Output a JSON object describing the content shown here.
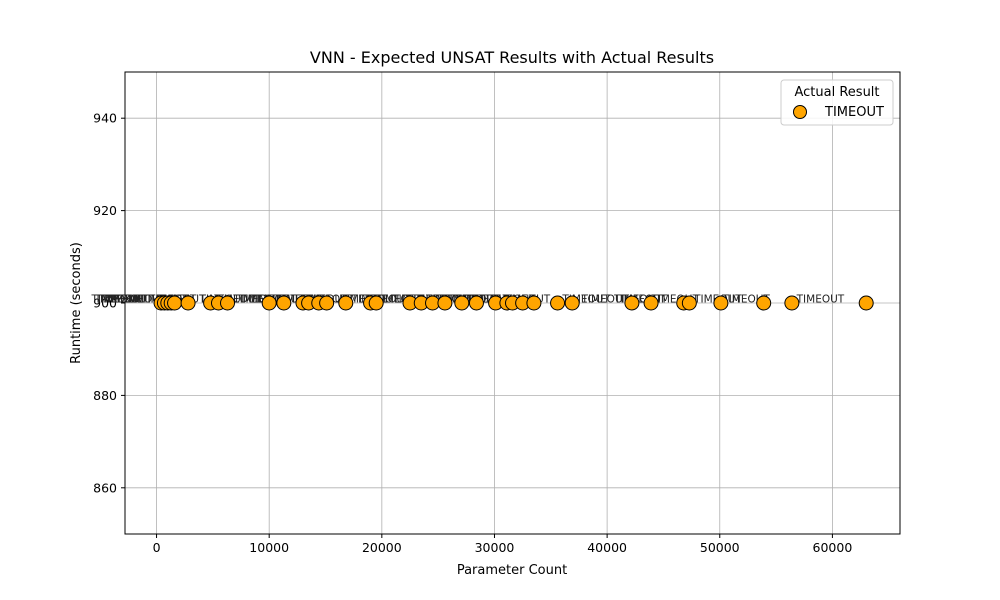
{
  "chart_data": {
    "type": "scatter",
    "title": "VNN - Expected UNSAT Results with Actual Results",
    "xlabel": "Parameter Count",
    "ylabel": "Runtime (seconds)",
    "xlim": [
      -2800,
      66000
    ],
    "ylim": [
      850,
      950
    ],
    "xticks": [
      0,
      10000,
      20000,
      30000,
      40000,
      50000,
      60000
    ],
    "yticks": [
      860,
      880,
      900,
      920,
      940
    ],
    "grid": true,
    "legend": {
      "title": "Actual Result",
      "placement": "top-right",
      "entries": [
        {
          "label": "TIMEOUT",
          "color": "#FFA500"
        }
      ]
    },
    "series": [
      {
        "name": "TIMEOUT",
        "color": "#FFA500",
        "point_label": "TIMEOUT",
        "x": [
          400,
          700,
          1000,
          1300,
          1600,
          2800,
          4800,
          5500,
          6300,
          10000,
          11300,
          13000,
          13500,
          14400,
          15100,
          16800,
          19000,
          19500,
          22500,
          23500,
          24500,
          25600,
          27100,
          28400,
          30100,
          31100,
          31600,
          32500,
          33500,
          35600,
          36900,
          42200,
          43900,
          46800,
          47300,
          50100,
          53900,
          56400,
          63000
        ],
        "y": [
          900,
          900,
          900,
          900,
          900,
          900,
          900,
          900,
          900,
          900,
          900,
          900,
          900,
          900,
          900,
          900,
          900,
          900,
          900,
          900,
          900,
          900,
          900,
          900,
          900,
          900,
          900,
          900,
          900,
          900,
          900,
          900,
          900,
          900,
          900,
          900,
          900,
          900,
          900
        ]
      }
    ]
  }
}
